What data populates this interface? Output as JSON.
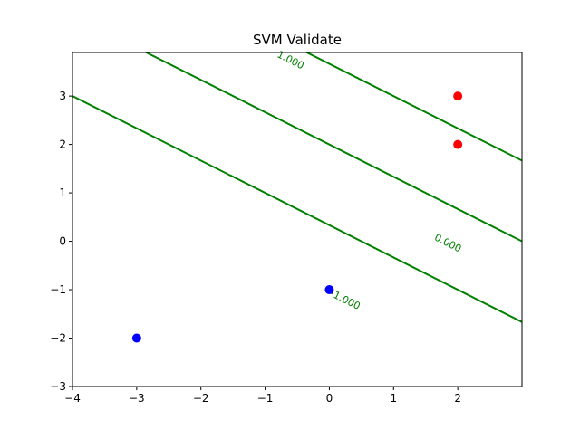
{
  "colors": {
    "background": "#ffffff",
    "axes": "#000000",
    "contour": "#008000",
    "positive_point": "#ff0000",
    "negative_point": "#0000ff"
  },
  "chart_data": {
    "type": "scatter",
    "title": "SVM Validate",
    "xlabel": "",
    "ylabel": "",
    "xlim": [
      -4,
      3
    ],
    "ylim": [
      -3,
      3.9
    ],
    "grid": false,
    "legend": "none",
    "xticks": [
      -4,
      -3,
      -2,
      -1,
      0,
      1,
      2
    ],
    "xtick_labels": [
      "−4",
      "−3",
      "−2",
      "−1",
      "0",
      "1",
      "2"
    ],
    "yticks": [
      -3,
      -2,
      -1,
      0,
      1,
      2,
      3
    ],
    "ytick_labels": [
      "−3",
      "−2",
      "−1",
      "0",
      "1",
      "2",
      "3"
    ],
    "series": [
      {
        "color": "#ff0000",
        "points": [
          [
            2,
            3
          ],
          [
            2,
            2
          ]
        ]
      },
      {
        "color": "#0000ff",
        "points": [
          [
            0,
            -1
          ],
          [
            -3,
            -2
          ]
        ]
      }
    ],
    "decision_function": {
      "w": [
        0.4,
        0.6
      ],
      "b": -1.2
    },
    "contour_levels": [
      {
        "level": -1,
        "label": "-1.000",
        "label_at": [
          0.25,
          -1.2
        ]
      },
      {
        "level": 0,
        "label": "0.000",
        "label_at": [
          1.85,
          -0.03
        ]
      },
      {
        "level": 1,
        "label": "1.000",
        "label_at": [
          -0.6,
          3.75
        ]
      }
    ]
  }
}
